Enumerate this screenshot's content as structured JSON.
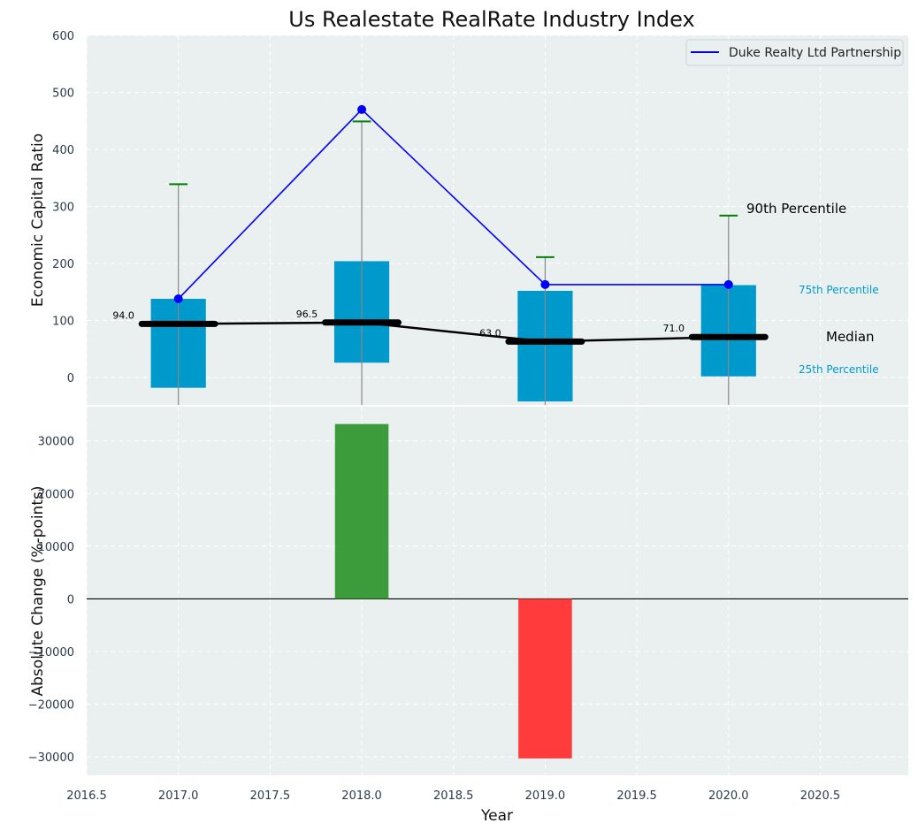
{
  "chart_data": {
    "type": "box-and-bar",
    "title": "Us Realestate RealRate Industry Index",
    "xlabel": "Year",
    "xlim": [
      2016.5,
      2020.98
    ],
    "x_ticks": [
      2016.5,
      2017.0,
      2017.5,
      2018.0,
      2018.5,
      2019.0,
      2019.5,
      2020.0,
      2020.5
    ],
    "x_tick_labels": [
      "2016.5",
      "2017.0",
      "2017.5",
      "2018.0",
      "2018.5",
      "2019.0",
      "2019.5",
      "2020.0",
      "2020.5"
    ],
    "top_panel": {
      "ylabel": "Economic Capital Ratio",
      "ylim": [
        -48,
        600
      ],
      "y_ticks": [
        0,
        100,
        200,
        300,
        400,
        500,
        600
      ],
      "y_tick_labels": [
        "0",
        "100",
        "200",
        "300",
        "400",
        "500",
        "600"
      ],
      "grid": true,
      "years": [
        2017,
        2018,
        2019,
        2020
      ],
      "p25": [
        -18,
        26,
        -42,
        2
      ],
      "p75": [
        138,
        204,
        152,
        162
      ],
      "p90": [
        339,
        449,
        211,
        284
      ],
      "median": [
        94.0,
        96.5,
        63.0,
        71.0
      ],
      "median_labels": [
        "94.0",
        "96.5",
        "63.0",
        "71.0"
      ],
      "series": [
        {
          "name": "Duke Realty Ltd Partnership",
          "values": [
            138,
            470,
            163,
            163
          ],
          "color": "#0000ff"
        }
      ],
      "legend": {
        "placement": "top-right"
      },
      "annotations": {
        "p90": "90th Percentile",
        "p75": "75th Percentile",
        "median": "Median",
        "p25": "25th Percentile"
      },
      "colors": {
        "box": "#0099cc",
        "median": "#000000",
        "whisker": "#888888",
        "cap": "#008000"
      }
    },
    "bottom_panel": {
      "ylabel": "Absolute Change (%-points)",
      "ylim": [
        -33500,
        36500
      ],
      "y_ticks": [
        -30000,
        -20000,
        -10000,
        0,
        10000,
        20000,
        30000
      ],
      "y_tick_labels": [
        "−30000",
        "−20000",
        "−10000",
        "0",
        "10000",
        "20000",
        "30000"
      ],
      "grid": true,
      "years": [
        2018,
        2019
      ],
      "values": [
        33200,
        -30300
      ],
      "colors": {
        "positive": "#3c9c3c",
        "negative": "#ff3b3b"
      }
    },
    "colors": {
      "panel_bg": "#eaeff0",
      "grid": "#ffffff"
    }
  }
}
